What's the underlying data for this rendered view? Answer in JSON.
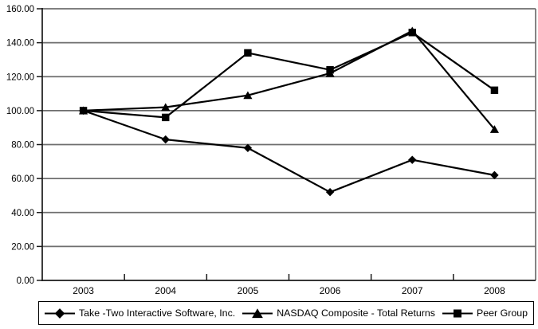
{
  "chart_data": {
    "type": "line",
    "title": "",
    "xlabel": "",
    "ylabel": "",
    "categories": [
      "2003",
      "2004",
      "2005",
      "2006",
      "2007",
      "2008"
    ],
    "series": [
      {
        "name": "Take -Two Interactive Software, Inc.",
        "marker": "diamond",
        "values": [
          100,
          83,
          78,
          52,
          71,
          62
        ]
      },
      {
        "name": "NASDAQ Composite - Total Returns",
        "marker": "triangle",
        "values": [
          100,
          102,
          109,
          122,
          147,
          89
        ]
      },
      {
        "name": "Peer Group",
        "marker": "square",
        "values": [
          100,
          96,
          134,
          124,
          146,
          112
        ]
      }
    ],
    "ylim": [
      0,
      160
    ],
    "ytick_step": 20,
    "ytick_labels": [
      "0.00",
      "20.00",
      "40.00",
      "60.00",
      "80.00",
      "100.00",
      "120.00",
      "140.00",
      "160.00"
    ],
    "grid": true,
    "legend_position": "bottom",
    "colors": {
      "series_line": "#000000",
      "marker_fill": "#000000",
      "gridline": "#6e6e6e",
      "axis": "#1a1a1a",
      "text": "#000000",
      "background": "#ffffff"
    }
  }
}
